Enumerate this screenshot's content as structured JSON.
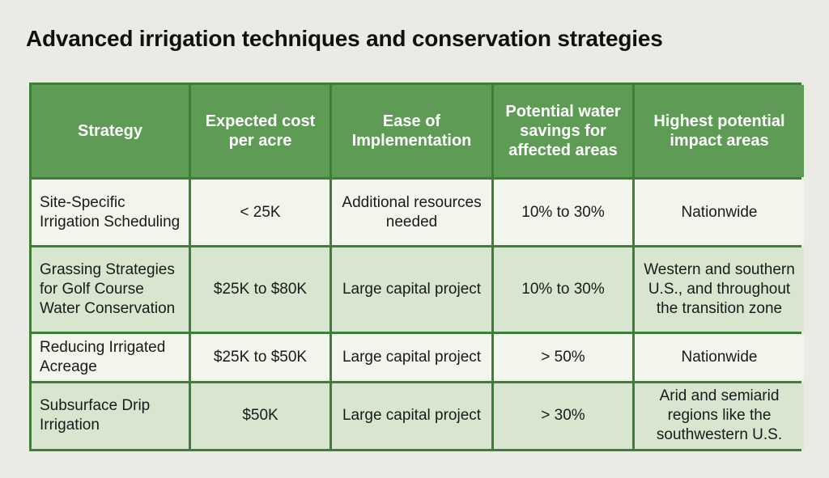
{
  "title": "Advanced irrigation techniques and conservation strategies",
  "table": {
    "headers": [
      "Strategy",
      "Expected cost per acre",
      "Ease of Implementation",
      "Potential water savings for affected areas",
      "Highest potential impact areas"
    ],
    "rows": [
      [
        "Site-Specific Irrigation Scheduling",
        "< 25K",
        "Additional resources needed",
        "10% to 30%",
        "Nationwide"
      ],
      [
        "Grassing Strategies for Golf Course Water Conservation",
        "$25K to $80K",
        "Large capital project",
        "10% to 30%",
        "Western and southern U.S., and throughout the transition zone"
      ],
      [
        "Reducing Irrigated Acreage",
        "$25K to $50K",
        "Large capital project",
        "> 50%",
        "Nationwide"
      ],
      [
        "Subsurface Drip Irrigation",
        "$50K",
        "Large capital project",
        "> 30%",
        "Arid and semiarid regions like the southwestern U.S."
      ]
    ]
  },
  "colors": {
    "header_bg": "#5e9c55",
    "border": "#3d7f38",
    "row_light": "#f1f5ec",
    "row_dark": "#d8e6cf"
  }
}
